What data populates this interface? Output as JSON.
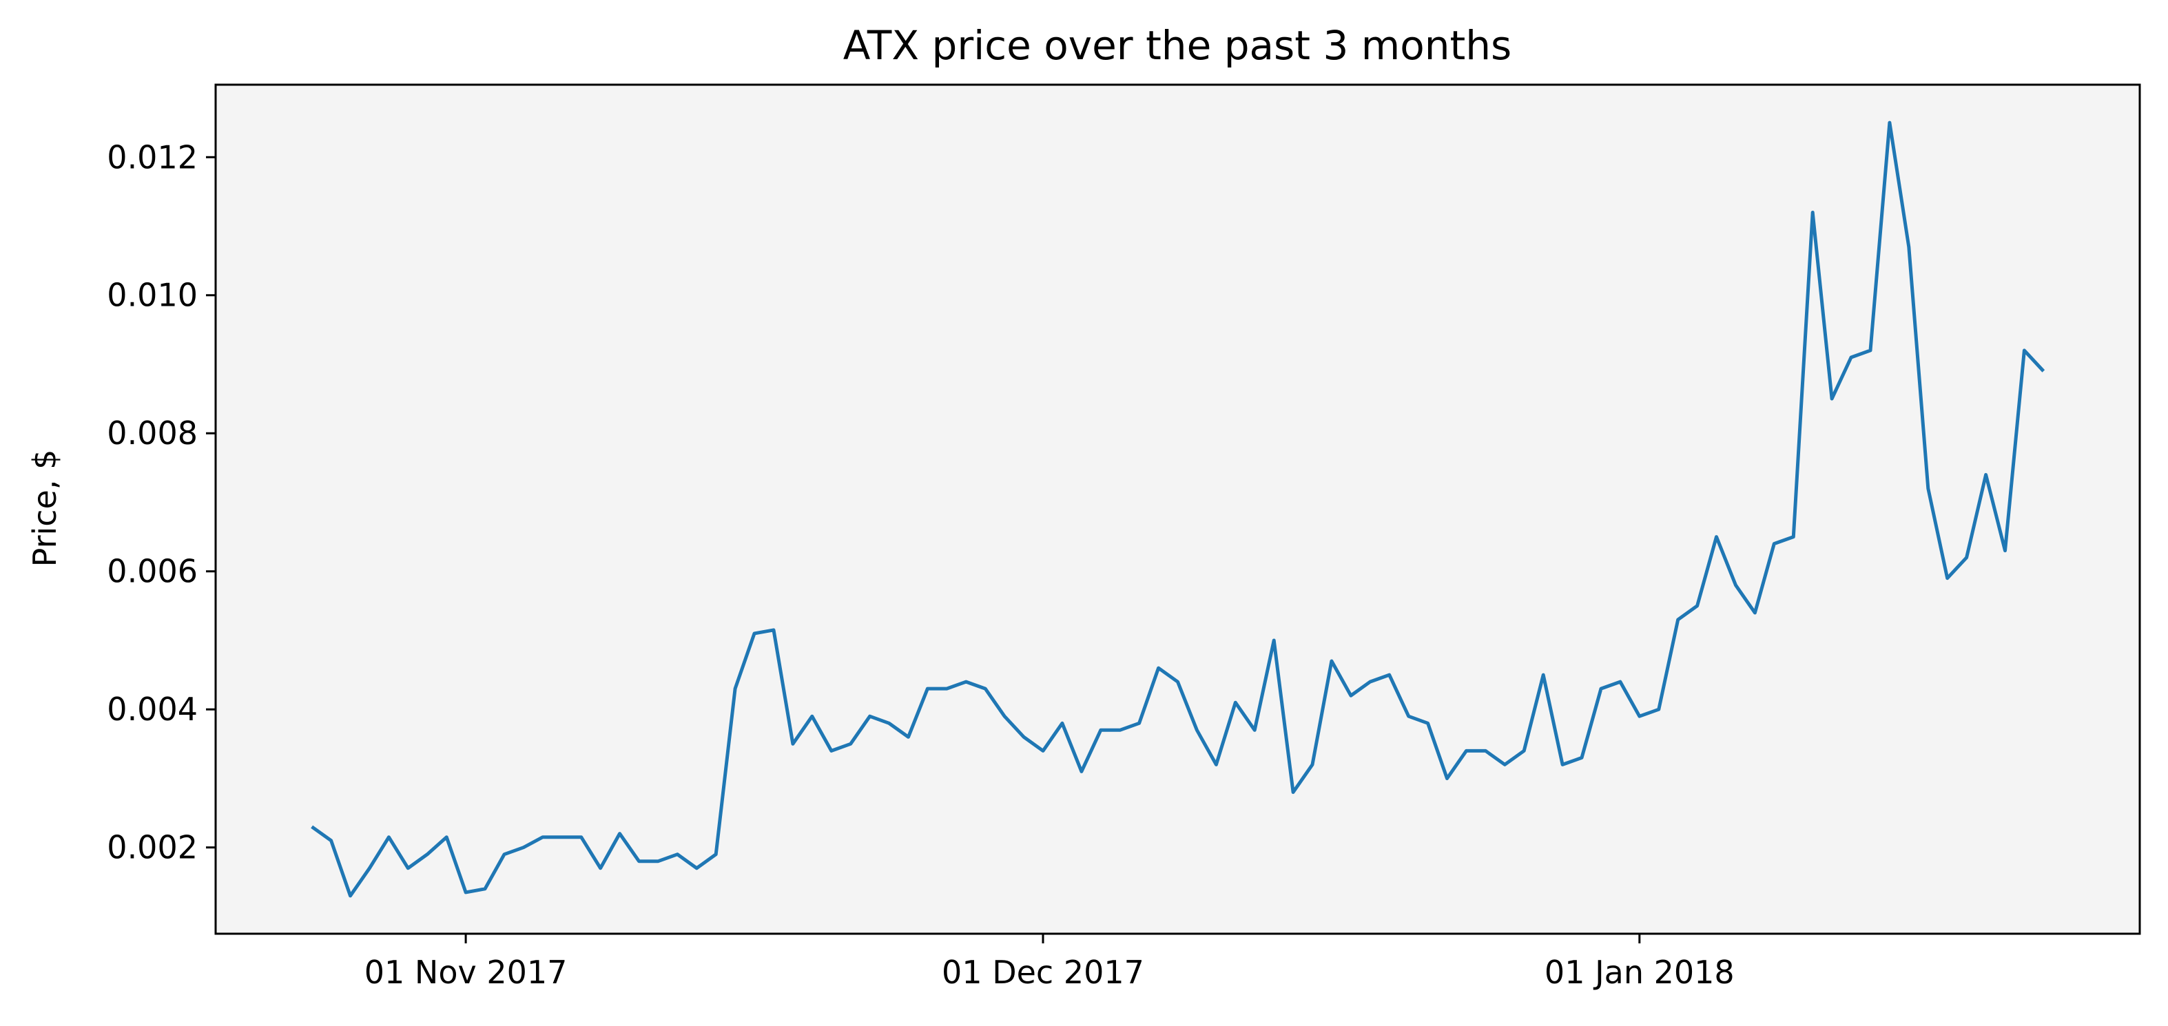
{
  "chart_data": {
    "type": "line",
    "title": "ATX price over the past 3 months",
    "xlabel": "",
    "ylabel": "Price, $",
    "x_ticks": [
      {
        "label": "01 Nov 2017",
        "date": "2017-11-01"
      },
      {
        "label": "01 Dec 2017",
        "date": "2017-12-01"
      },
      {
        "label": "01 Jan 2018",
        "date": "2018-01-01"
      }
    ],
    "y_ticks": [
      {
        "label": "0.002",
        "value": 0.002
      },
      {
        "label": "0.004",
        "value": 0.004
      },
      {
        "label": "0.006",
        "value": 0.006
      },
      {
        "label": "0.008",
        "value": 0.008
      },
      {
        "label": "0.010",
        "value": 0.01
      },
      {
        "label": "0.012",
        "value": 0.012
      }
    ],
    "xlim": [
      "2017-10-19",
      "2018-01-27"
    ],
    "ylim": [
      0.00075,
      0.01305
    ],
    "grid": false,
    "legend": "none",
    "series": [
      {
        "color": "#1f77b4",
        "points": [
          [
            "2017-10-24",
            0.0023
          ],
          [
            "2017-10-25",
            0.0021
          ],
          [
            "2017-10-26",
            0.0013
          ],
          [
            "2017-10-27",
            0.0017
          ],
          [
            "2017-10-28",
            0.00215
          ],
          [
            "2017-10-29",
            0.0017
          ],
          [
            "2017-10-30",
            0.0019
          ],
          [
            "2017-10-31",
            0.00215
          ],
          [
            "2017-11-01",
            0.00135
          ],
          [
            "2017-11-02",
            0.0014
          ],
          [
            "2017-11-03",
            0.0019
          ],
          [
            "2017-11-04",
            0.002
          ],
          [
            "2017-11-05",
            0.00215
          ],
          [
            "2017-11-06",
            0.00215
          ],
          [
            "2017-11-07",
            0.00215
          ],
          [
            "2017-11-08",
            0.0017
          ],
          [
            "2017-11-09",
            0.0022
          ],
          [
            "2017-11-10",
            0.0018
          ],
          [
            "2017-11-11",
            0.0018
          ],
          [
            "2017-11-12",
            0.0019
          ],
          [
            "2017-11-13",
            0.0017
          ],
          [
            "2017-11-14",
            0.0019
          ],
          [
            "2017-11-15",
            0.0043
          ],
          [
            "2017-11-16",
            0.0051
          ],
          [
            "2017-11-17",
            0.00515
          ],
          [
            "2017-11-18",
            0.0035
          ],
          [
            "2017-11-19",
            0.0039
          ],
          [
            "2017-11-20",
            0.0034
          ],
          [
            "2017-11-21",
            0.0035
          ],
          [
            "2017-11-22",
            0.0039
          ],
          [
            "2017-11-23",
            0.0038
          ],
          [
            "2017-11-24",
            0.0036
          ],
          [
            "2017-11-25",
            0.0043
          ],
          [
            "2017-11-26",
            0.0043
          ],
          [
            "2017-11-27",
            0.0044
          ],
          [
            "2017-11-28",
            0.0043
          ],
          [
            "2017-11-29",
            0.0039
          ],
          [
            "2017-11-30",
            0.0036
          ],
          [
            "2017-12-01",
            0.0034
          ],
          [
            "2017-12-02",
            0.0038
          ],
          [
            "2017-12-03",
            0.0031
          ],
          [
            "2017-12-04",
            0.0037
          ],
          [
            "2017-12-05",
            0.0037
          ],
          [
            "2017-12-06",
            0.0038
          ],
          [
            "2017-12-07",
            0.0046
          ],
          [
            "2017-12-08",
            0.0044
          ],
          [
            "2017-12-09",
            0.0037
          ],
          [
            "2017-12-10",
            0.0032
          ],
          [
            "2017-12-11",
            0.0041
          ],
          [
            "2017-12-12",
            0.0037
          ],
          [
            "2017-12-13",
            0.005
          ],
          [
            "2017-12-14",
            0.0028
          ],
          [
            "2017-12-15",
            0.0032
          ],
          [
            "2017-12-16",
            0.0047
          ],
          [
            "2017-12-17",
            0.0042
          ],
          [
            "2017-12-18",
            0.0044
          ],
          [
            "2017-12-19",
            0.0045
          ],
          [
            "2017-12-20",
            0.0039
          ],
          [
            "2017-12-21",
            0.0038
          ],
          [
            "2017-12-22",
            0.003
          ],
          [
            "2017-12-23",
            0.0034
          ],
          [
            "2017-12-24",
            0.0034
          ],
          [
            "2017-12-25",
            0.0032
          ],
          [
            "2017-12-26",
            0.0034
          ],
          [
            "2017-12-27",
            0.0045
          ],
          [
            "2017-12-28",
            0.0032
          ],
          [
            "2017-12-29",
            0.0033
          ],
          [
            "2017-12-30",
            0.0043
          ],
          [
            "2017-12-31",
            0.0044
          ],
          [
            "2018-01-01",
            0.0039
          ],
          [
            "2018-01-02",
            0.004
          ],
          [
            "2018-01-03",
            0.0053
          ],
          [
            "2018-01-04",
            0.0055
          ],
          [
            "2018-01-05",
            0.0065
          ],
          [
            "2018-01-06",
            0.0058
          ],
          [
            "2018-01-07",
            0.0054
          ],
          [
            "2018-01-08",
            0.0064
          ],
          [
            "2018-01-09",
            0.0065
          ],
          [
            "2018-01-10",
            0.0112
          ],
          [
            "2018-01-11",
            0.0085
          ],
          [
            "2018-01-12",
            0.0091
          ],
          [
            "2018-01-13",
            0.0092
          ],
          [
            "2018-01-14",
            0.0125
          ],
          [
            "2018-01-15",
            0.0107
          ],
          [
            "2018-01-16",
            0.0072
          ],
          [
            "2018-01-17",
            0.0059
          ],
          [
            "2018-01-18",
            0.0062
          ],
          [
            "2018-01-19",
            0.0074
          ],
          [
            "2018-01-20",
            0.0063
          ],
          [
            "2018-01-21",
            0.0092
          ],
          [
            "2018-01-22",
            0.0089
          ]
        ]
      }
    ]
  }
}
